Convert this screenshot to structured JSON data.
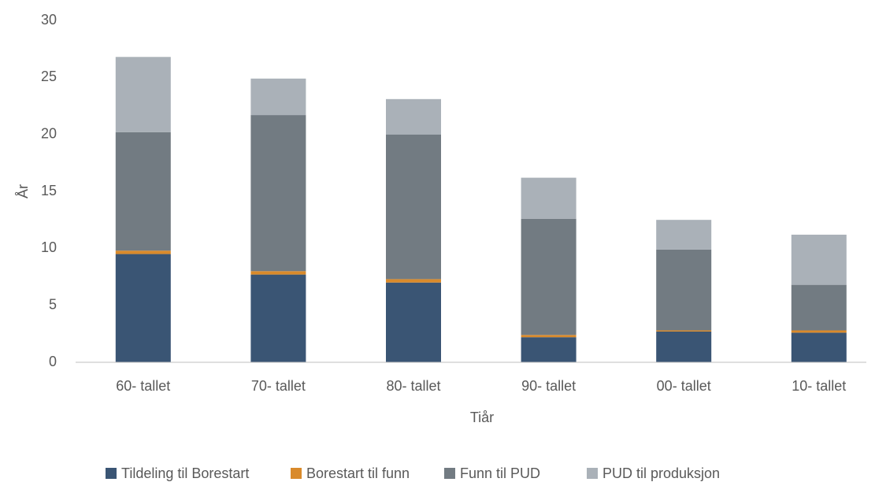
{
  "chart_data": {
    "type": "stacked-bar",
    "categories": [
      "60- tallet",
      "70- tallet",
      "80- tallet",
      "90- tallet",
      "00- tallet",
      "10- tallet"
    ],
    "series": [
      {
        "name": "Tildeling til Borestart",
        "color": "#3a5574",
        "values": [
          9.5,
          7.7,
          7.0,
          2.2,
          2.7,
          2.6
        ]
      },
      {
        "name": "Borestart til funn",
        "color": "#d98a2b",
        "values": [
          0.3,
          0.3,
          0.3,
          0.2,
          0.1,
          0.2
        ]
      },
      {
        "name": "Funn til PUD",
        "color": "#727b82",
        "values": [
          10.4,
          13.7,
          12.7,
          10.2,
          7.1,
          4.0
        ]
      },
      {
        "name": "PUD til produksjon",
        "color": "#aab1b8",
        "values": [
          6.6,
          3.2,
          3.1,
          3.6,
          2.6,
          4.4
        ]
      }
    ],
    "xlabel": "Tiår",
    "ylabel": "År",
    "ylim": [
      0,
      30
    ],
    "yticks": [
      0,
      5,
      10,
      15,
      20,
      25,
      30
    ],
    "grid": false,
    "legend": "bottom"
  }
}
